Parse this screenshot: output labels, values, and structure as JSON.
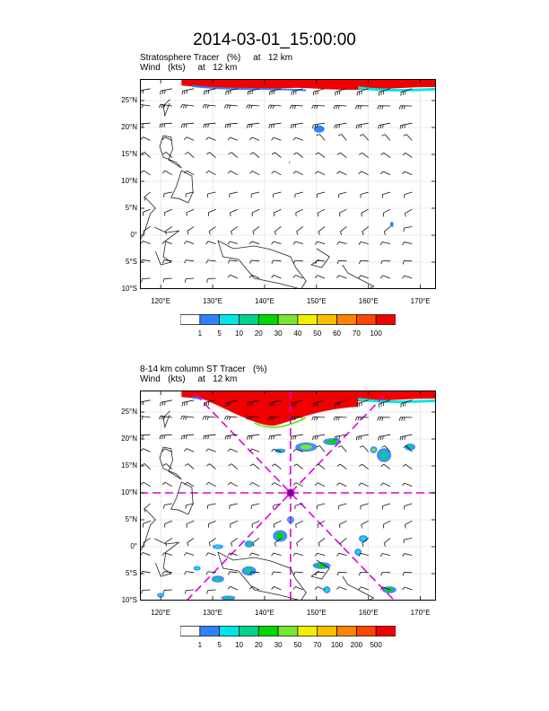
{
  "title": "2014-03-01_15:00:00",
  "panels": [
    {
      "title_line1": "Stratosphere Tracer   (%)     at   12 km",
      "title_line2": "Wind   (kts)     at   12 km",
      "colorbar_labels": [
        "1",
        "5",
        "10",
        "20",
        "30",
        "40",
        "50",
        "60",
        "70",
        "100"
      ],
      "colorbar_colors": [
        "#ffffff",
        "#2f82ff",
        "#00e6e6",
        "#00d28c",
        "#00d700",
        "#78e632",
        "#f0f000",
        "#ffbe00",
        "#ff8200",
        "#ff4600",
        "#f00000"
      ]
    },
    {
      "title_line1": "8-14 km column ST Tracer   (%)",
      "title_line2": "Wind   (kts)     at   12 km",
      "colorbar_labels": [
        "1",
        "5",
        "10",
        "20",
        "30",
        "50",
        "70",
        "100",
        "200",
        "500"
      ],
      "colorbar_colors": [
        "#ffffff",
        "#2f82ff",
        "#00e6e6",
        "#00d28c",
        "#00d700",
        "#78e632",
        "#f0f000",
        "#ffbe00",
        "#ff8200",
        "#ff4600",
        "#f00000"
      ]
    }
  ],
  "chart_data": [
    {
      "type": "heatmap",
      "title": "Stratosphere Tracer (%) at 12 km",
      "overlay": "Wind (kts) at 12 km",
      "x_range": [
        116,
        173
      ],
      "y_range": [
        -10,
        29
      ],
      "x_ticks": [
        120,
        130,
        140,
        150,
        160,
        170
      ],
      "x_tick_labels": [
        "120°E",
        "130°E",
        "140°E",
        "150°E",
        "160°E",
        "170°E"
      ],
      "y_ticks": [
        -10,
        -5,
        0,
        5,
        10,
        15,
        20,
        25
      ],
      "y_tick_labels": [
        "10°S",
        "5°S",
        "0°",
        "5°N",
        "10°N",
        "15°N",
        "20°N",
        "25°N"
      ],
      "levels": [
        1,
        5,
        10,
        20,
        30,
        40,
        50,
        60,
        70,
        100
      ]
    },
    {
      "type": "heatmap",
      "title": "8-14 km column ST Tracer (%)",
      "overlay": "Wind (kts) at 12 km",
      "x_range": [
        116,
        173
      ],
      "y_range": [
        -10,
        29
      ],
      "x_ticks": [
        120,
        130,
        140,
        150,
        160,
        170
      ],
      "x_tick_labels": [
        "120°E",
        "130°E",
        "140°E",
        "150°E",
        "160°E",
        "170°E"
      ],
      "y_ticks": [
        -10,
        -5,
        0,
        5,
        10,
        15,
        20,
        25
      ],
      "y_tick_labels": [
        "10°S",
        "5°S",
        "0°",
        "5°N",
        "10°N",
        "15°N",
        "20°N",
        "25°N"
      ],
      "levels": [
        1,
        5,
        10,
        20,
        30,
        50,
        70,
        100,
        200,
        500
      ],
      "center_marker": {
        "lon": 145,
        "lat": 10
      }
    }
  ]
}
